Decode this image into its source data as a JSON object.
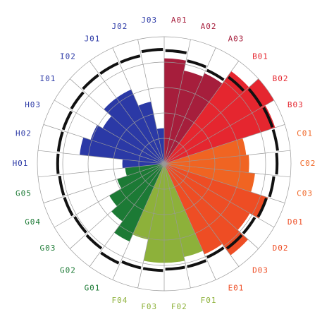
{
  "chart_data": {
    "type": "polar-bar",
    "categories": [
      "A01",
      "A02",
      "A03",
      "B01",
      "B02",
      "B03",
      "C01",
      "C02",
      "C03",
      "D01",
      "D02",
      "D03",
      "E01",
      "F01",
      "F02",
      "F03",
      "F04",
      "G01",
      "G02",
      "G03",
      "G04",
      "G05",
      "H01",
      "H02",
      "H03",
      "I01",
      "I02",
      "J01",
      "J02",
      "J03"
    ],
    "values": [
      8.3,
      7.5,
      7.8,
      9.0,
      10.0,
      9.2,
      6.5,
      6.7,
      7.2,
      8.6,
      7.8,
      8.9,
      7.8,
      7.5,
      7.8,
      7.8,
      6.1,
      6.7,
      5.6,
      5.0,
      3.9,
      3.1,
      3.3,
      6.7,
      6.1,
      5.6,
      6.4,
      6.4,
      5.0,
      2.8
    ],
    "targets": [
      8.9,
      8.3,
      8.1,
      8.5,
      8.9,
      9.0,
      9.0,
      8.9,
      8.7,
      8.5,
      8.3,
      8.3,
      8.1,
      8.3,
      8.3,
      8.4,
      8.4,
      8.6,
      8.3,
      8.2,
      8.3,
      8.3,
      8.4,
      8.4,
      8.4,
      8.5,
      8.7,
      8.7,
      8.7,
      9.0
    ],
    "colors": [
      "#a61e3c",
      "#a61e3c",
      "#a61e3c",
      "#e5262f",
      "#e5262f",
      "#e5262f",
      "#f06422",
      "#f06422",
      "#f06422",
      "#ee4d24",
      "#ee4d24",
      "#ee4d24",
      "#ee4d24",
      "#8db13a",
      "#8db13a",
      "#8db13a",
      "#8db13a",
      "#1c7a35",
      "#1c7a35",
      "#1c7a35",
      "#1c7a35",
      "#1c7a35",
      "#2b39a6",
      "#2b39a6",
      "#2b39a6",
      "#2b39a6",
      "#2b39a6",
      "#2b39a6",
      "#2b39a6",
      "#2b39a6"
    ],
    "rlim": [
      0,
      10
    ],
    "rticks": [
      2,
      4,
      6,
      8,
      10
    ],
    "grid": true
  }
}
